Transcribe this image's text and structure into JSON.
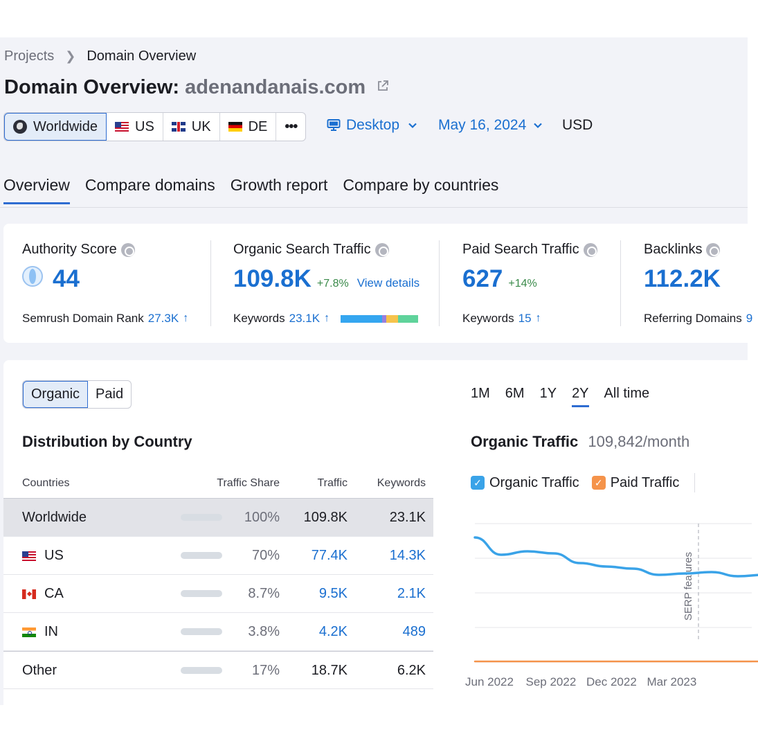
{
  "breadcrumb": {
    "parent": "Projects",
    "current": "Domain Overview"
  },
  "title": {
    "prefix": "Domain Overview:",
    "domain": "adenandanais.com"
  },
  "databases": [
    {
      "label": "Worldwide",
      "icon": "globe-icon",
      "active": true
    },
    {
      "label": "US",
      "icon": "flag-us-icon"
    },
    {
      "label": "UK",
      "icon": "flag-uk-icon"
    },
    {
      "label": "DE",
      "icon": "flag-de-icon"
    },
    {
      "label": "•••",
      "icon": "more-icon"
    }
  ],
  "device": {
    "label": "Desktop",
    "icon": "monitor-icon"
  },
  "date": {
    "label": "May 16, 2024"
  },
  "currency": "USD",
  "tabs": [
    {
      "label": "Overview",
      "active": true
    },
    {
      "label": "Compare domains"
    },
    {
      "label": "Growth report"
    },
    {
      "label": "Compare by countries"
    }
  ],
  "metrics": {
    "authority": {
      "label": "Authority Score",
      "value": "44",
      "sub_label": "Semrush Domain Rank",
      "sub_value": "27.3K",
      "sub_arrow": "↑"
    },
    "organic": {
      "label": "Organic Search Traffic",
      "value": "109.8K",
      "delta": "+7.8%",
      "link": "View details",
      "sub_label": "Keywords",
      "sub_value": "23.1K",
      "sub_arrow": "↑"
    },
    "paid": {
      "label": "Paid Search Traffic",
      "value": "627",
      "delta": "+14%",
      "sub_label": "Keywords",
      "sub_value": "15",
      "sub_arrow": "↑"
    },
    "backlinks": {
      "label": "Backlinks",
      "value": "112.2K",
      "sub_label": "Referring Domains",
      "sub_value": "9"
    }
  },
  "keyword_bar_colors": [
    "#35a6f0",
    "#9a7fdc",
    "#f6c34c",
    "#5fd39b"
  ],
  "segment": {
    "options": [
      "Organic",
      "Paid"
    ],
    "active": "Organic"
  },
  "distribution": {
    "title": "Distribution by Country",
    "headers": {
      "country": "Countries",
      "share": "Traffic Share",
      "traffic": "Traffic",
      "keywords": "Keywords"
    },
    "rows": [
      {
        "country": "Worldwide",
        "flag": "",
        "share": "100%",
        "share_value": 1.0,
        "traffic": "109.8K",
        "keywords": "23.1K"
      },
      {
        "country": "US",
        "flag": "flag-us",
        "share": "70%",
        "share_value": 0.7,
        "traffic": "77.4K",
        "keywords": "14.3K"
      },
      {
        "country": "CA",
        "flag": "flag-ca",
        "share": "8.7%",
        "share_value": 0.087,
        "traffic": "9.5K",
        "keywords": "2.1K"
      },
      {
        "country": "IN",
        "flag": "flag-in",
        "share": "3.8%",
        "share_value": 0.038,
        "traffic": "4.2K",
        "keywords": "489"
      },
      {
        "country": "Other",
        "flag": "",
        "share": "17%",
        "share_value": 0.17,
        "traffic": "18.7K",
        "keywords": "6.2K"
      }
    ]
  },
  "ranges": [
    {
      "label": "1M"
    },
    {
      "label": "6M"
    },
    {
      "label": "1Y"
    },
    {
      "label": "2Y",
      "active": true
    },
    {
      "label": "All time"
    }
  ],
  "chart": {
    "title": "Organic Traffic",
    "subtitle": "109,842/month",
    "legend": [
      {
        "label": "Organic Traffic",
        "color": "#3aa3e8"
      },
      {
        "label": "Paid Traffic",
        "color": "#f5934a"
      }
    ],
    "annotation": "SERP features"
  },
  "chart_data": {
    "type": "line",
    "x_ticks": [
      "Jun 2022",
      "Sep 2022",
      "Dec 2022",
      "Mar 2023"
    ],
    "x": [
      "Jun 2022",
      "Jul 2022",
      "Aug 2022",
      "Sep 2022",
      "Oct 2022",
      "Nov 2022",
      "Dec 2022",
      "Jan 2023",
      "Feb 2023",
      "Mar 2023",
      "Apr 2023",
      "May 2023",
      "Jun 2023"
    ],
    "series": [
      {
        "name": "Organic Traffic",
        "values": [
          180,
          155,
          160,
          157,
          143,
          138,
          135,
          126,
          128,
          130,
          124,
          126,
          130
        ]
      },
      {
        "name": "Paid Traffic",
        "values": [
          1,
          1,
          1,
          1,
          1,
          1,
          1,
          1,
          1,
          1,
          1,
          1,
          1
        ]
      }
    ],
    "ylim": [
      0,
      200
    ],
    "grid": true,
    "annotation": {
      "label": "SERP features",
      "x": "Mar 2023"
    }
  }
}
